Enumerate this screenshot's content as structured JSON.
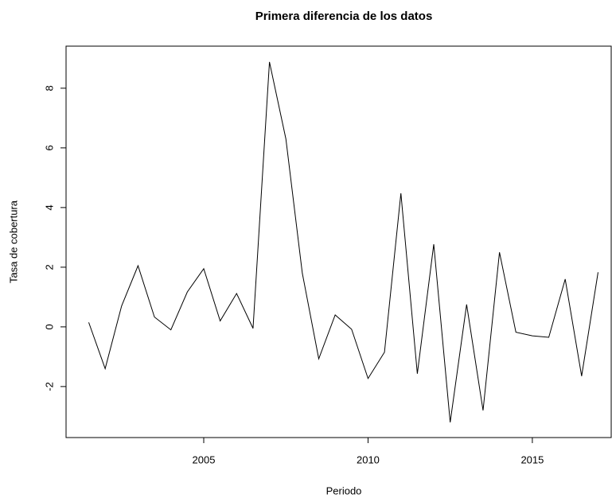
{
  "chart_data": {
    "type": "line",
    "title": "Primera diferencia de los datos",
    "x_label": "Periodo",
    "y_label": "Tasa de cobertura",
    "x": [
      2001.5,
      2002.0,
      2002.5,
      2003.0,
      2003.5,
      2004.0,
      2004.5,
      2005.0,
      2005.5,
      2006.0,
      2006.5,
      2007.0,
      2007.5,
      2008.0,
      2008.5,
      2009.0,
      2009.5,
      2010.0,
      2010.5,
      2011.0,
      2011.5,
      2012.0,
      2012.5,
      2013.0,
      2013.5,
      2014.0,
      2014.5,
      2015.0,
      2015.5,
      2016.0,
      2016.5,
      2017.0
    ],
    "series": [
      {
        "color": "#000000",
        "values": [
          0.15,
          -1.4,
          0.7,
          2.05,
          0.33,
          -0.1,
          1.17,
          1.95,
          0.2,
          1.12,
          -0.05,
          8.88,
          6.3,
          1.8,
          -1.07,
          0.4,
          -0.08,
          -1.73,
          -0.85,
          4.48,
          -1.57,
          2.77,
          -3.2,
          0.75,
          -2.8,
          2.5,
          -0.18,
          -0.3,
          -0.35,
          1.6,
          -1.65,
          1.83
        ]
      }
    ],
    "xlim": [
      2000.81,
      2017.4
    ],
    "xticks": [
      2005,
      2010,
      2015
    ],
    "ylim": [
      -3.71,
      9.41
    ],
    "yticks": [
      -2,
      0,
      2,
      4,
      6,
      8
    ],
    "grid": false
  }
}
